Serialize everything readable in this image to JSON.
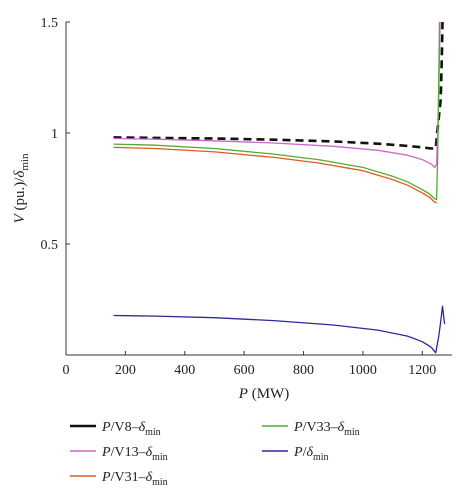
{
  "chart_data": {
    "type": "line",
    "xlabel": {
      "main": "P",
      "unit": " (MW)"
    },
    "ylabel": {
      "main": "V",
      "mid": " (pu.)/",
      "delta": "δ",
      "sub": "min"
    },
    "xlim": [
      0,
      1300
    ],
    "ylim": [
      0,
      1.5
    ],
    "xticks": [
      0,
      200,
      400,
      600,
      800,
      1000,
      1200
    ],
    "yticks": [
      0.5,
      1,
      1.5
    ],
    "ytick_labels": [
      "0.5",
      "1",
      "1.5"
    ],
    "legend_position": "bottom",
    "series": [
      {
        "name": "P/V8–δmin",
        "label_parts": {
          "a": "P",
          "b": "/V8–",
          "c": "δ",
          "sub": "min"
        },
        "color": "#111111",
        "dash": "8,5",
        "width": 2.6,
        "x": [
          160,
          300,
          500,
          700,
          900,
          1050,
          1150,
          1200,
          1230,
          1245,
          1250,
          1255,
          1262,
          1266,
          1268
        ],
        "y": [
          0.98,
          0.978,
          0.975,
          0.97,
          0.962,
          0.952,
          0.942,
          0.935,
          0.93,
          0.93,
          1.0,
          1.06,
          1.15,
          1.35,
          1.5
        ]
      },
      {
        "name": "P/V13–δmin",
        "label_parts": {
          "a": "P",
          "b": "/V13–",
          "c": "δ",
          "sub": "min"
        },
        "color": "#cc66cc",
        "dash": "",
        "width": 1.3,
        "x": [
          160,
          300,
          500,
          700,
          900,
          1050,
          1150,
          1200,
          1230,
          1242,
          1248,
          1252,
          1256,
          1260
        ],
        "y": [
          0.975,
          0.972,
          0.965,
          0.955,
          0.94,
          0.922,
          0.9,
          0.88,
          0.86,
          0.845,
          0.86,
          1.0,
          1.2,
          1.5
        ]
      },
      {
        "name": "P/V31–δmin",
        "label_parts": {
          "a": "P",
          "b": "/V31–",
          "c": "δ",
          "sub": "min"
        },
        "color": "#e05a1e",
        "dash": "",
        "width": 1.3,
        "x": [
          160,
          300,
          500,
          700,
          850,
          1000,
          1100,
          1150,
          1200,
          1225,
          1240,
          1248
        ],
        "y": [
          0.935,
          0.93,
          0.915,
          0.89,
          0.865,
          0.83,
          0.79,
          0.765,
          0.73,
          0.71,
          0.69,
          0.685
        ]
      },
      {
        "name": "P/V33–δmin",
        "label_parts": {
          "a": "P",
          "b": "/V33–",
          "c": "δ",
          "sub": "min"
        },
        "color": "#55aa33",
        "dash": "",
        "width": 1.3,
        "x": [
          160,
          300,
          500,
          700,
          850,
          1000,
          1100,
          1150,
          1200,
          1225,
          1240,
          1248,
          1252,
          1255,
          1258
        ],
        "y": [
          0.95,
          0.945,
          0.93,
          0.905,
          0.88,
          0.845,
          0.805,
          0.78,
          0.745,
          0.725,
          0.705,
          0.7,
          0.9,
          1.2,
          1.5
        ]
      },
      {
        "name": "P/δmin",
        "label_parts": {
          "a": "P",
          "b": "/",
          "c": "δ",
          "sub": "min"
        },
        "color": "#2a2a9a",
        "dash": "",
        "width": 1.3,
        "x": [
          160,
          300,
          500,
          700,
          900,
          1050,
          1150,
          1200,
          1230,
          1245,
          1255,
          1262,
          1268,
          1275
        ],
        "y": [
          0.178,
          0.175,
          0.168,
          0.155,
          0.135,
          0.112,
          0.085,
          0.06,
          0.035,
          0.01,
          0.08,
          0.15,
          0.22,
          0.14
        ]
      }
    ]
  }
}
